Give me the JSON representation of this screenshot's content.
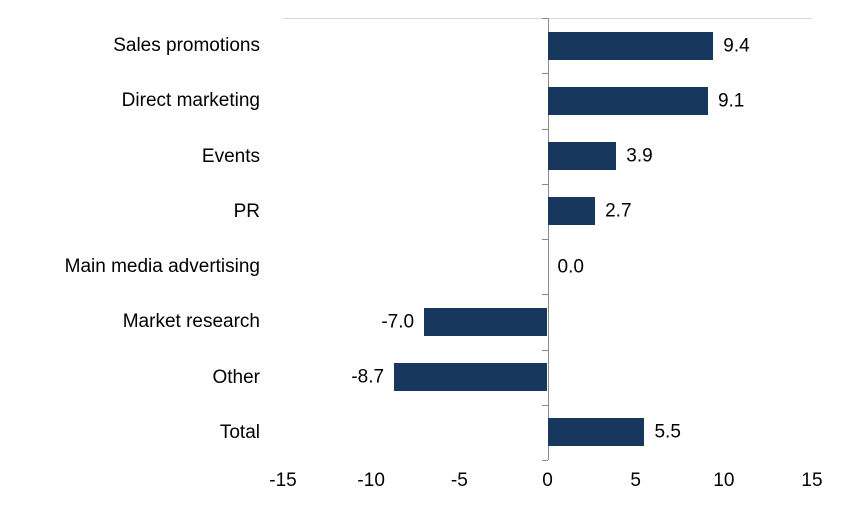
{
  "chart_data": {
    "type": "bar",
    "orientation": "horizontal",
    "title": "",
    "xlabel": "",
    "ylabel": "",
    "categories": [
      "Sales promotions",
      "Direct marketing",
      "Events",
      "PR",
      "Main media advertising",
      "Market research",
      "Other",
      "Total"
    ],
    "values": [
      9.4,
      9.1,
      3.9,
      2.7,
      0.0,
      -7.0,
      -8.7,
      5.5
    ],
    "value_labels": [
      "9.4",
      "9.1",
      "3.9",
      "2.7",
      "0.0",
      "-7.0",
      "-8.7",
      "5.5"
    ],
    "xlim": [
      -15,
      15
    ],
    "x_ticks": [
      -15,
      -10,
      -5,
      0,
      5,
      10,
      15
    ],
    "x_tick_labels": [
      "-15",
      "-10",
      "-5",
      "0",
      "5",
      "10",
      "15"
    ],
    "grid": false,
    "legend": false,
    "colors": {
      "bar": "#17375E",
      "axis_line": "#8c8c8c",
      "plot_top_border": "#d9d9d9",
      "text": "#000000"
    }
  }
}
